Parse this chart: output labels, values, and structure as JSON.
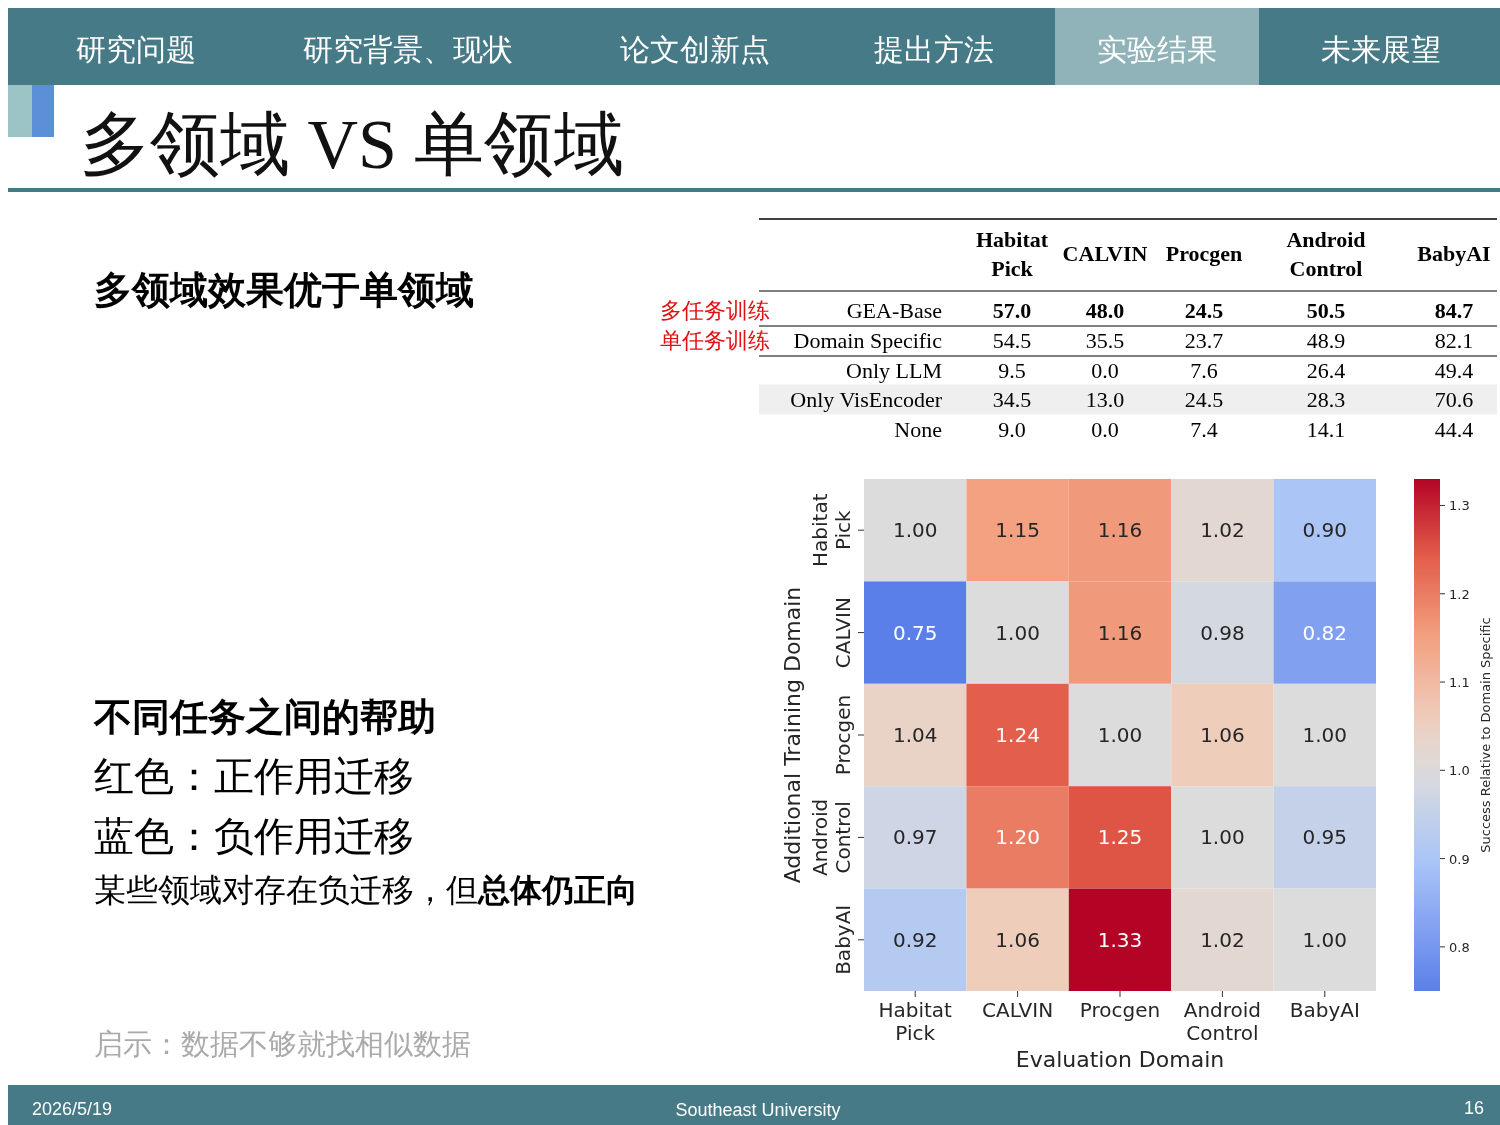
{
  "chart_data": [
    {
      "type": "other",
      "title": "多领域 VS 单领域",
      "annotations": [
        "研究问题",
        "研究背景、现状",
        "论文创新点",
        "提出方法",
        "实验结果",
        "未来展望",
        "多领域效果优于单领域",
        "不同任务之间的帮助",
        "红色：正作用迁移",
        "蓝色：负作用迁移",
        "某些领域对存在负迁移，但",
        "总体仍正向",
        "启示：数据不够就找相似数据",
        "2026/5/19",
        "Southeast University",
        "16"
      ]
    },
    {
      "type": "heatmap",
      "categories": [
        "Habitat Pick",
        "CALVIN",
        "Procgen",
        "Android Control",
        "BabyAI"
      ],
      "y_categories": [
        "GEA-Base",
        "Domain Specific",
        "Only LLM",
        "Only VisEncoder",
        "None"
      ],
      "cells": [
        [
          57.0,
          48.0,
          24.5,
          50.5,
          84.7
        ],
        [
          54.5,
          35.5,
          23.7,
          48.9,
          82.1
        ],
        [
          9.5,
          0.0,
          7.6,
          26.4,
          49.4
        ],
        [
          34.5,
          13.0,
          24.5,
          28.3,
          70.6
        ],
        [
          9.0,
          0.0,
          7.4,
          14.1,
          44.4
        ]
      ],
      "cell_labels": [
        [
          "57.0",
          "48.0",
          "24.5",
          "50.5",
          "84.7"
        ],
        [
          "54.5",
          "35.5",
          "23.7",
          "48.9",
          "82.1"
        ],
        [
          "9.5",
          "0.0",
          "7.6",
          "26.4",
          "49.4"
        ],
        [
          "34.5",
          "13.0",
          "24.5",
          "28.3",
          "70.6"
        ],
        [
          "9.0",
          "0.0",
          "7.4",
          "14.1",
          "44.4"
        ]
      ],
      "annotations": [
        "多任务训练",
        "单任务训练"
      ]
    },
    {
      "type": "heatmap",
      "categories": [
        "Habitat Pick",
        "CALVIN",
        "Procgen",
        "Android Control",
        "BabyAI"
      ],
      "y_categories": [
        "Habitat Pick",
        "CALVIN",
        "Procgen",
        "Android Control",
        "BabyAI"
      ],
      "cells": [
        [
          1.0,
          1.15,
          1.16,
          1.02,
          0.9
        ],
        [
          0.75,
          1.0,
          1.16,
          0.98,
          0.82
        ],
        [
          1.04,
          1.24,
          1.0,
          1.06,
          1.0
        ],
        [
          0.97,
          1.2,
          1.25,
          1.0,
          0.95
        ],
        [
          0.92,
          1.06,
          1.33,
          1.02,
          1.0
        ]
      ],
      "cell_labels": [
        [
          "1.00",
          "1.15",
          "1.16",
          "1.02",
          "0.90"
        ],
        [
          "0.75",
          "1.00",
          "1.16",
          "0.98",
          "0.82"
        ],
        [
          "1.04",
          "1.24",
          "1.00",
          "1.06",
          "1.00"
        ],
        [
          "0.97",
          "1.20",
          "1.25",
          "1.00",
          "0.95"
        ],
        [
          "0.92",
          "1.06",
          "1.33",
          "1.02",
          "1.00"
        ]
      ],
      "xlabel": "Evaluation Domain",
      "ylabel": "Additional Training Domain",
      "clabel": "Success Relative to Domain Specific",
      "clim": [
        0.75,
        1.33
      ],
      "cticks": [
        0.8,
        0.9,
        {
          "value": 1.0,
          "label": "1.0"
        },
        1.1,
        1.2,
        1.3
      ]
    }
  ]
}
